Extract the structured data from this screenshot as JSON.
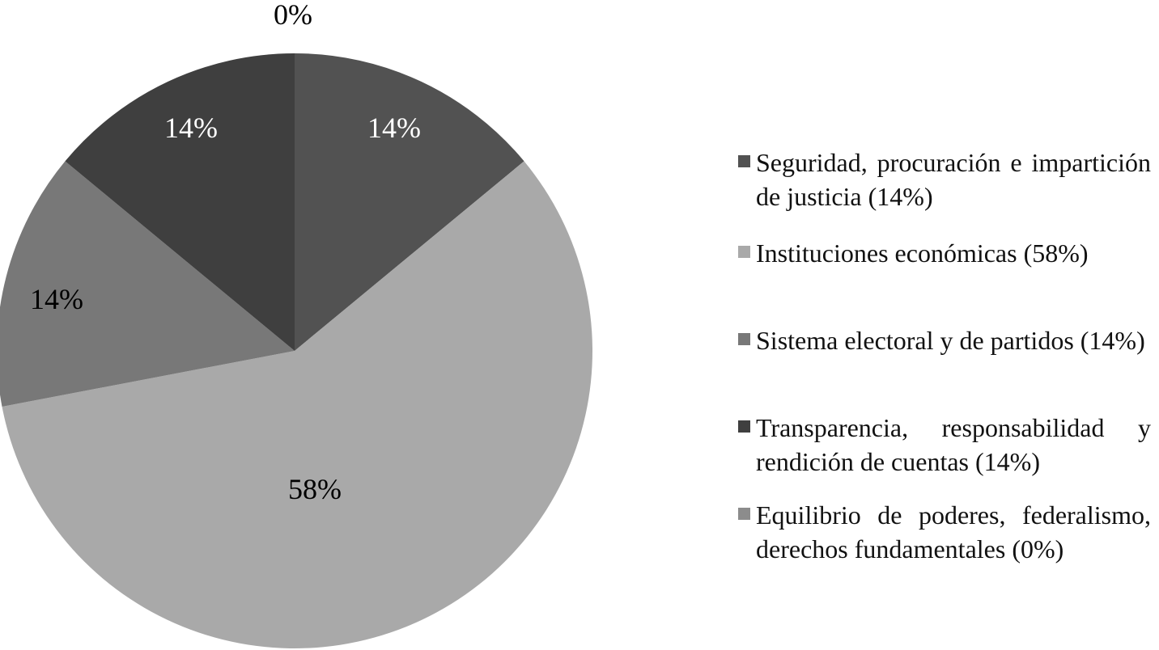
{
  "chart_data": {
    "type": "pie",
    "slices": [
      {
        "label": "Seguridad, procuración e impartición de justicia (14%)",
        "value": 14,
        "display": "14%",
        "color": "#525252",
        "label_color": "#ffffff"
      },
      {
        "label": "Instituciones económicas (58%)",
        "value": 58,
        "display": "58%",
        "color": "#a9a9a9",
        "label_color": "#000000"
      },
      {
        "label": "Sistema electoral y de partidos (14%)",
        "value": 14,
        "display": "14%",
        "color": "#787878",
        "label_color": "#000000"
      },
      {
        "label": "Transparencia, responsabilidad y rendición de cuentas (14%)",
        "value": 14,
        "display": "14%",
        "color": "#3f3f3f",
        "label_color": "#ffffff"
      },
      {
        "label": "Equilibrio de poderes, federalismo, derechos fundamentales (0%)",
        "value": 0,
        "display": "0%",
        "color": "#8c8c8c",
        "label_color": "#000000"
      }
    ],
    "start_angle": "12 o'clock",
    "direction": "clockwise",
    "legend_position": "right"
  }
}
